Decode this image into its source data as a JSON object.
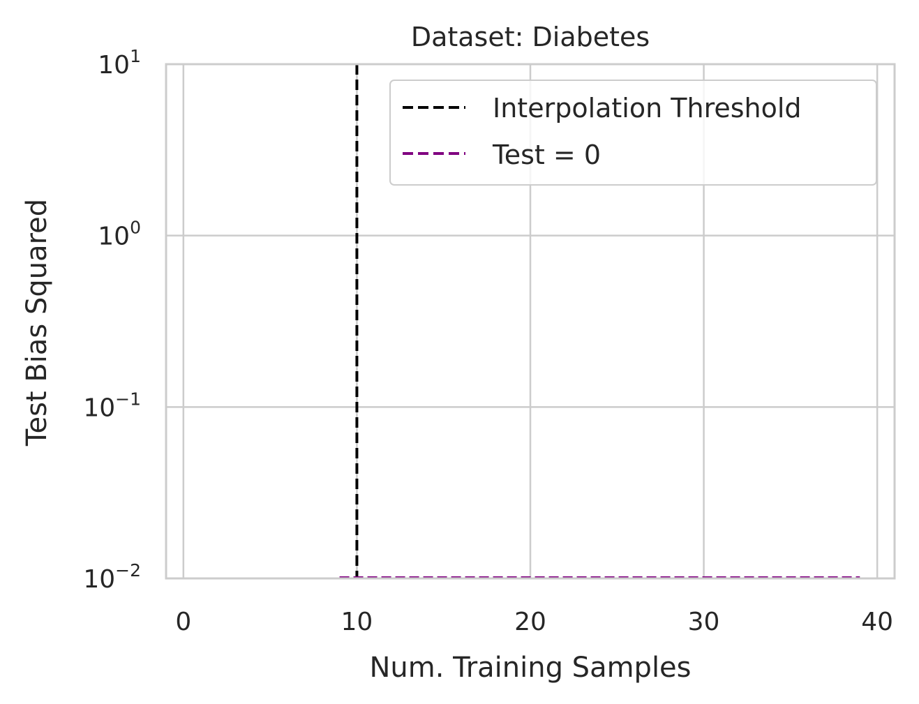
{
  "chart_data": {
    "type": "line",
    "title": "Dataset: Diabetes",
    "xlabel": "Num. Training Samples",
    "ylabel": "Test Bias Squared",
    "xlim": [
      -1,
      41
    ],
    "ylim": [
      0.01,
      10
    ],
    "yscale": "log",
    "grid": true,
    "legend_position": "top-right",
    "x_ticks": [
      {
        "value": 0,
        "label": "0"
      },
      {
        "value": 10,
        "label": "10"
      },
      {
        "value": 20,
        "label": "20"
      },
      {
        "value": 30,
        "label": "30"
      },
      {
        "value": 40,
        "label": "40"
      }
    ],
    "y_ticks": [
      {
        "value": 0.01,
        "base": "10",
        "exp": "−2"
      },
      {
        "value": 0.1,
        "base": "10",
        "exp": "−1"
      },
      {
        "value": 1,
        "base": "10",
        "exp": "0"
      },
      {
        "value": 10,
        "base": "10",
        "exp": "1"
      }
    ],
    "series": [
      {
        "name": "Interpolation Threshold",
        "kind": "vline",
        "x": 10,
        "color": "#000000",
        "linestyle": "dashed"
      },
      {
        "name": "Test = 0",
        "kind": "hline",
        "y": 0.01,
        "x_range": [
          9,
          39
        ],
        "color": "#800080",
        "linestyle": "dashed"
      }
    ],
    "colors": {
      "grid": "#cccccc",
      "spine": "#cccccc",
      "text": "#262626"
    }
  }
}
